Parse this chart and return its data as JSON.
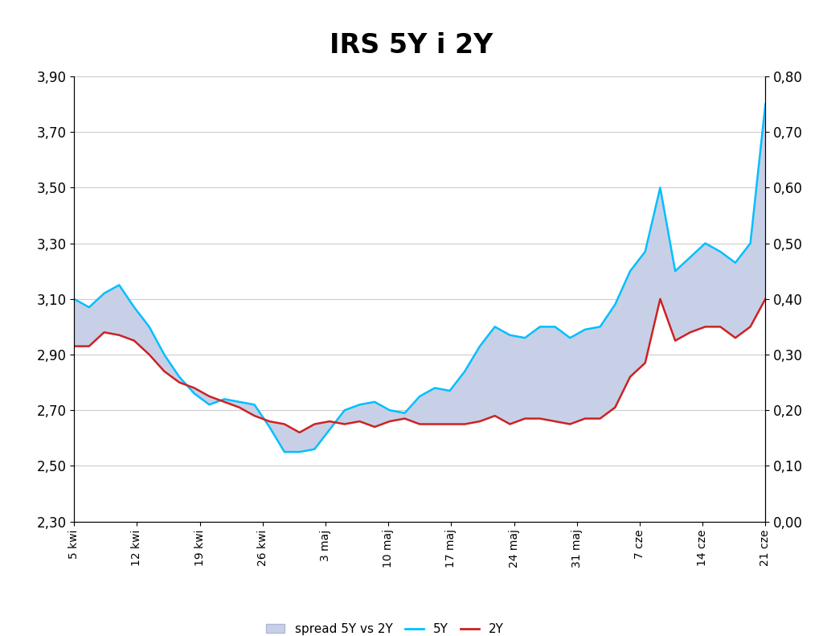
{
  "title": "IRS 5Y i 2Y",
  "title_fontsize": 24,
  "title_fontweight": "bold",
  "x_labels": [
    "5 kwi",
    "12 kwi",
    "19 kwi",
    "26 kwi",
    "3 maj",
    "10 maj",
    "17 maj",
    "24 maj",
    "31 maj",
    "7 cze",
    "14 cze",
    "21 cze"
  ],
  "y5_values": [
    3.1,
    3.07,
    3.12,
    3.15,
    3.07,
    3.0,
    2.9,
    2.82,
    2.76,
    2.72,
    2.74,
    2.73,
    2.72,
    2.64,
    2.55,
    2.55,
    2.56,
    2.63,
    2.7,
    2.72,
    2.73,
    2.7,
    2.69,
    2.75,
    2.78,
    2.77,
    2.84,
    2.93,
    3.0,
    2.97,
    2.96,
    3.0,
    3.0,
    2.96,
    2.99,
    3.0,
    3.08,
    3.2,
    3.27,
    3.5,
    3.2,
    3.25,
    3.3,
    3.27,
    3.23,
    3.3,
    3.8
  ],
  "y2_values": [
    2.93,
    2.93,
    2.98,
    2.97,
    2.95,
    2.9,
    2.84,
    2.8,
    2.78,
    2.75,
    2.73,
    2.71,
    2.68,
    2.66,
    2.65,
    2.62,
    2.65,
    2.66,
    2.65,
    2.66,
    2.64,
    2.66,
    2.67,
    2.65,
    2.65,
    2.65,
    2.65,
    2.66,
    2.68,
    2.65,
    2.67,
    2.67,
    2.66,
    2.65,
    2.67,
    2.67,
    2.71,
    2.82,
    2.87,
    3.1,
    2.95,
    2.98,
    3.0,
    3.0,
    2.96,
    3.0,
    3.1
  ],
  "left_ylim": [
    2.3,
    3.9
  ],
  "left_yticks": [
    2.3,
    2.5,
    2.7,
    2.9,
    3.1,
    3.3,
    3.5,
    3.7,
    3.9
  ],
  "right_ylim": [
    0.0,
    0.8
  ],
  "right_yticks": [
    0.0,
    0.1,
    0.2,
    0.3,
    0.4,
    0.5,
    0.6,
    0.7,
    0.8
  ],
  "color_5y": "#00BFFF",
  "color_2y": "#CC2222",
  "color_spread_fill": "#c8d0e8",
  "color_spread_edge": "#b0b8d8",
  "background_color": "#ffffff",
  "plot_bg_color": "#ffffff",
  "grid_color": "#cccccc",
  "legend_labels": [
    "spread 5Y vs 2Y",
    "5Y",
    "2Y"
  ]
}
